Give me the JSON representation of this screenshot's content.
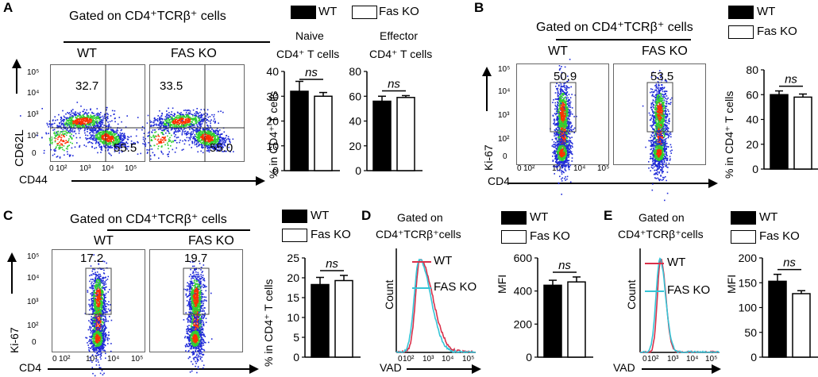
{
  "colors": {
    "wt_bar": "#000000",
    "ko_bar": "#ffffff",
    "wt_hist": "#d9304a",
    "ko_hist": "#35c4d6",
    "dots_dense": "#ff3000",
    "dots_mid": "#30d030",
    "dots_sparse": "#1e2ad8"
  },
  "panelA": {
    "letter": "A",
    "gate": "Gated on CD4⁺TCRβ⁺ cells",
    "wt": "WT",
    "ko": "FAS KO",
    "ylabel": "CD62L",
    "xlabel": "CD44",
    "ticks_y": [
      "10⁵",
      "10⁴",
      "10³",
      "10²",
      "0"
    ],
    "ticks_x": [
      "0",
      "10²",
      "10³",
      "10⁴",
      "10⁵"
    ],
    "wt_upper": "32.7",
    "wt_lower": "55.5",
    "ko_upper": "33.5",
    "ko_lower": "55.0",
    "legend_wt": "WT",
    "legend_ko": "Fas KO",
    "naive_title": "Naive",
    "naive_sub": "CD4⁺ T cells",
    "effector_title": "Effector",
    "effector_sub": "CD4⁺ T cells",
    "bar_ylabel": "% in CD4⁺ T cells",
    "ns": "ns"
  },
  "panelB": {
    "letter": "B",
    "gate": "Gated on CD4⁺TCRβ⁺ cells",
    "wt": "WT",
    "ko": "FAS KO",
    "ylabel": "Ki-67",
    "xlabel": "CD4",
    "wt_val": "50.9",
    "ko_val": "53.5",
    "legend_wt": "WT",
    "legend_ko": "Fas KO",
    "bar_ylabel": "% in CD4⁺ T cells",
    "ns": "ns"
  },
  "panelC": {
    "letter": "C",
    "gate": "Gated on CD4⁺TCRβ⁺ cells",
    "wt": "WT",
    "ko": "FAS KO",
    "ylabel": "Ki-67",
    "xlabel": "CD4",
    "wt_val": "17.2",
    "ko_val": "19.7",
    "legend_wt": "WT",
    "legend_ko": "Fas KO",
    "bar_ylabel": "% in CD4⁺ T cells",
    "ns": "ns"
  },
  "panelD": {
    "letter": "D",
    "gate_line1": "Gated on",
    "gate_line2": "CD4⁺TCRβ⁺cells",
    "legend_wt": "WT",
    "legend_ko": "FAS KO",
    "ylabel": "Count",
    "xlabel": "VAD",
    "bar_legend_wt": "WT",
    "bar_legend_ko": "Fas KO",
    "bar_ylabel": "MFI",
    "ns": "ns"
  },
  "panelE": {
    "letter": "E",
    "gate_line1": "Gated on",
    "gate_line2": "CD4⁺TCRβ⁺cells",
    "legend_wt": "WT",
    "legend_ko": "FAS KO",
    "ylabel": "Count",
    "xlabel": "VAD",
    "bar_legend_wt": "WT",
    "bar_legend_ko": "Fas KO",
    "bar_ylabel": "MFI",
    "ns": "ns"
  },
  "chart_data": [
    {
      "type": "bar",
      "id": "A-naive",
      "title": "Naive CD4⁺ T cells",
      "ylabel": "% in CD4⁺ T cells",
      "categories": [
        "WT",
        "Fas KO"
      ],
      "values": [
        32,
        30
      ],
      "errors": [
        4,
        1.5
      ],
      "ylim": [
        0,
        40
      ],
      "ticks": [
        0,
        10,
        20,
        30,
        40
      ],
      "annotation": "ns"
    },
    {
      "type": "bar",
      "id": "A-effector",
      "title": "Effector CD4⁺ T cells",
      "ylabel": "% in CD4⁺ T cells",
      "categories": [
        "WT",
        "Fas KO"
      ],
      "values": [
        56,
        59
      ],
      "errors": [
        4,
        1.5
      ],
      "ylim": [
        0,
        80
      ],
      "ticks": [
        0,
        20,
        40,
        60,
        80
      ],
      "annotation": "ns"
    },
    {
      "type": "bar",
      "id": "B",
      "ylabel": "% in CD4⁺ T cells",
      "categories": [
        "WT",
        "Fas KO"
      ],
      "values": [
        60,
        58
      ],
      "errors": [
        3,
        2.5
      ],
      "ylim": [
        0,
        80
      ],
      "ticks": [
        0,
        20,
        40,
        60,
        80
      ],
      "annotation": "ns"
    },
    {
      "type": "bar",
      "id": "C",
      "ylabel": "% in CD4⁺ T cells",
      "categories": [
        "WT",
        "Fas KO"
      ],
      "values": [
        18.3,
        19.3
      ],
      "errors": [
        1.8,
        1.3
      ],
      "ylim": [
        0,
        25
      ],
      "ticks": [
        0,
        5,
        10,
        15,
        20,
        25
      ],
      "annotation": "ns"
    },
    {
      "type": "bar",
      "id": "D",
      "ylabel": "MFI",
      "categories": [
        "WT",
        "Fas KO"
      ],
      "values": [
        435,
        455
      ],
      "errors": [
        30,
        30
      ],
      "ylim": [
        0,
        600
      ],
      "ticks": [
        0,
        200,
        400,
        600
      ],
      "annotation": "ns"
    },
    {
      "type": "bar",
      "id": "E",
      "ylabel": "MFI",
      "categories": [
        "WT",
        "Fas KO"
      ],
      "values": [
        153,
        128
      ],
      "errors": [
        14,
        6
      ],
      "ylim": [
        0,
        200
      ],
      "ticks": [
        0,
        50,
        100,
        150,
        200
      ],
      "annotation": "ns"
    }
  ]
}
